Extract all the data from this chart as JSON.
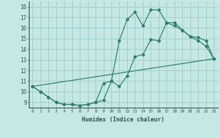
{
  "xlabel": "Humidex (Indice chaleur)",
  "ylabel": "",
  "bg_color": "#c5e8e5",
  "grid_color": "#9ecece",
  "line_color": "#2e7d6e",
  "xlim": [
    -0.5,
    23.5
  ],
  "ylim": [
    8.5,
    18.5
  ],
  "xticks": [
    0,
    1,
    2,
    3,
    4,
    5,
    6,
    7,
    8,
    9,
    10,
    11,
    12,
    13,
    14,
    15,
    16,
    17,
    18,
    19,
    20,
    21,
    22,
    23
  ],
  "yticks": [
    9,
    10,
    11,
    12,
    13,
    14,
    15,
    16,
    17,
    18
  ],
  "line1_x": [
    0,
    1,
    2,
    3,
    4,
    5,
    6,
    7,
    8,
    9,
    10,
    11,
    12,
    13,
    14,
    15,
    16,
    17,
    18,
    19,
    20,
    21,
    22,
    23
  ],
  "line1_y": [
    10.5,
    10.0,
    9.5,
    9.0,
    8.8,
    8.8,
    8.7,
    8.8,
    9.0,
    10.8,
    11.0,
    10.5,
    11.5,
    13.3,
    13.5,
    14.9,
    14.8,
    16.5,
    16.5,
    15.8,
    15.2,
    14.8,
    14.3,
    13.1
  ],
  "line2_x": [
    0,
    1,
    2,
    3,
    4,
    5,
    6,
    7,
    8,
    9,
    10,
    11,
    12,
    13,
    14,
    15,
    16,
    17,
    18,
    19,
    20,
    21,
    22,
    23
  ],
  "line2_y": [
    10.5,
    10.0,
    9.5,
    9.0,
    8.8,
    8.8,
    8.7,
    8.8,
    9.0,
    9.2,
    11.0,
    14.8,
    16.8,
    17.5,
    16.2,
    17.7,
    17.7,
    16.5,
    16.2,
    15.8,
    15.2,
    15.1,
    14.8,
    13.1
  ],
  "line3_x": [
    0,
    23
  ],
  "line3_y": [
    10.5,
    13.1
  ]
}
